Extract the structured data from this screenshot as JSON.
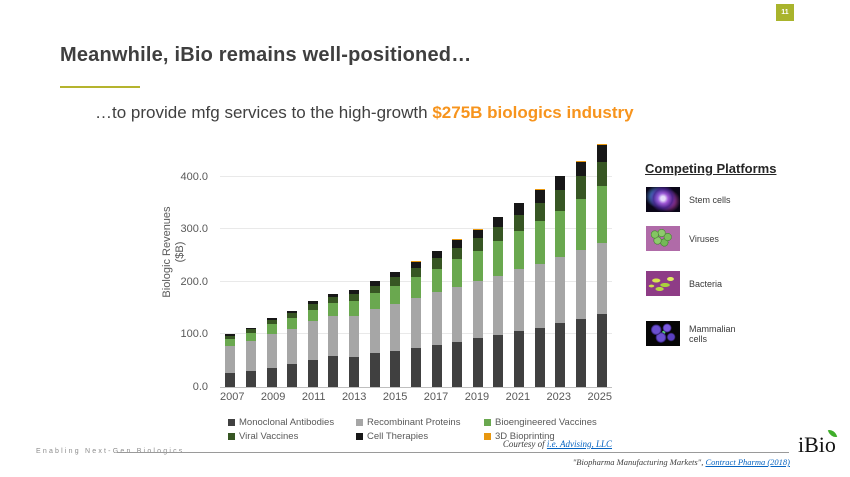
{
  "slide": {
    "page_number": "11",
    "title": "Meanwhile, iBio remains well-positioned…",
    "subtitle_prefix": "…to provide mfg services to the high-growth ",
    "subtitle_highlight": "$275B biologics industry"
  },
  "chart_data": {
    "type": "bar",
    "stacked": true,
    "ylabel_line1": "Biologic Revenues",
    "ylabel_line2": "($B)",
    "y_ticks": [
      "0.0",
      "100.0",
      "200.0",
      "300.0",
      "400.0"
    ],
    "ylim": [
      0,
      470
    ],
    "x_tick_step": 2,
    "grid": true,
    "legend_position": "bottom",
    "categories": [
      2007,
      2008,
      2009,
      2010,
      2011,
      2012,
      2013,
      2014,
      2015,
      2016,
      2017,
      2018,
      2019,
      2020,
      2021,
      2022,
      2023,
      2024,
      2025
    ],
    "series": [
      {
        "name": "Monoclonal Antibodies",
        "color": "#404040",
        "values": [
          26,
          31,
          37,
          43,
          52,
          59,
          58,
          64,
          68,
          74,
          80,
          86,
          93,
          99,
          106,
          113,
          121,
          129,
          138
        ]
      },
      {
        "name": "Recombinant Proteins",
        "color": "#a6a6a6",
        "values": [
          53,
          56,
          64,
          68,
          73,
          77,
          78,
          84,
          90,
          95,
          100,
          105,
          108,
          113,
          118,
          122,
          126,
          131,
          136
        ]
      },
      {
        "name": "Bioengineered Vaccines",
        "color": "#6aa84f",
        "values": [
          13,
          15,
          18,
          20,
          22,
          24,
          28,
          31,
          35,
          40,
          45,
          52,
          58,
          65,
          72,
          80,
          88,
          98,
          108
        ]
      },
      {
        "name": "Viral Vaccines",
        "color": "#375623",
        "values": [
          6,
          8,
          9,
          10,
          11,
          12,
          13,
          14,
          16,
          18,
          20,
          22,
          25,
          28,
          32,
          36,
          40,
          43,
          46
        ]
      },
      {
        "name": "Cell Therapies",
        "color": "#171717",
        "values": [
          2,
          3,
          3,
          4,
          5,
          6,
          7,
          8,
          9,
          11,
          13,
          15,
          15,
          18,
          22,
          24,
          26,
          28,
          32
        ]
      },
      {
        "name": "3D Bioprinting",
        "color": "#e8970f",
        "values": [
          0,
          0,
          0,
          0,
          0,
          0,
          0,
          0,
          0,
          1,
          1,
          1,
          1,
          1,
          1,
          1,
          1,
          2,
          2
        ]
      }
    ],
    "courtesy_prefix": "Courtesy of ",
    "courtesy_link": "i.e. Advising, LLC"
  },
  "platforms": {
    "title": "Competing Platforms",
    "items": [
      {
        "label": "Stem cells"
      },
      {
        "label": "Viruses"
      },
      {
        "label": "Bacteria"
      },
      {
        "label": "Mammalian cells"
      }
    ]
  },
  "footer": {
    "tagline": "Enabling Next-Gen Biologics",
    "logo_text": "iBio",
    "footnote_prefix": "\"Biopharma Manufacturing Markets\", ",
    "footnote_link": "Contract Pharma (2018)"
  },
  "colors": {
    "accent_olive": "#a9b42c",
    "title_underline": "#b5b42e",
    "highlight_orange": "#f7941d",
    "link_blue": "#0563c1",
    "title_gray": "#3f3f3f",
    "axis_gray": "#595959"
  }
}
